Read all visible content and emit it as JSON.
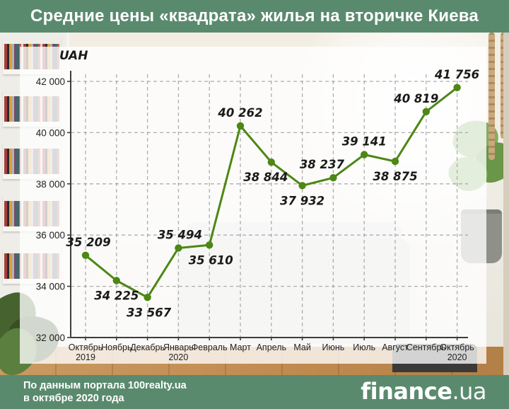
{
  "header": {
    "title": "Средние цены «квадрата» жилья на вторичке Киева"
  },
  "footer": {
    "source_line1": "По данным портала 100realty.ua",
    "source_line2": "в октябре 2020 года",
    "logo": {
      "name": "finance",
      "suffix": ".ua"
    }
  },
  "colors": {
    "brand_green": "#5a8a6e",
    "line_green": "#4d8714",
    "grid_gray": "#9b9b9b",
    "axis_dark": "#3d3d3d",
    "label_dark": "#1a1a18"
  },
  "chart_data": {
    "type": "line",
    "title": "Средние цены «квадрата» жилья на вторичке Киева",
    "unit_label": "UAH",
    "categories": [
      "Октябрь",
      "Ноябрь",
      "Декабрь",
      "Январь",
      "Февраль",
      "Март",
      "Апрель",
      "Май",
      "Июнь",
      "Июль",
      "Август",
      "Сентябрь",
      "Октябрь"
    ],
    "category_years": [
      "2019",
      "",
      "",
      "2020",
      "",
      "",
      "",
      "",
      "",
      "",
      "",
      "",
      "2020"
    ],
    "values": [
      35209,
      34225,
      33567,
      35494,
      35610,
      40262,
      38844,
      37932,
      38237,
      39141,
      38875,
      40819,
      41756
    ],
    "value_labels": [
      "35 209",
      "34 225",
      "33 567",
      "35 494",
      "35 610",
      "40 262",
      "38 844",
      "37 932",
      "38 237",
      "39 141",
      "38 875",
      "40 819",
      "41 756"
    ],
    "label_side": [
      "above",
      "below",
      "below",
      "above",
      "below",
      "above",
      "below",
      "below",
      "above",
      "above",
      "below",
      "above",
      "above"
    ],
    "label_dx": [
      4,
      0,
      2,
      2,
      2,
      0,
      -8,
      0,
      -16,
      0,
      0,
      -14,
      0
    ],
    "ylim": [
      32000,
      42400
    ],
    "yticks": [
      32000,
      34000,
      36000,
      38000,
      40000,
      42000
    ],
    "ytick_labels": [
      "32 000",
      "34 000",
      "36 000",
      "38 000",
      "40 000",
      "42 000"
    ],
    "grid": "dashed",
    "legend": "none",
    "line_color": "#4d8714"
  }
}
